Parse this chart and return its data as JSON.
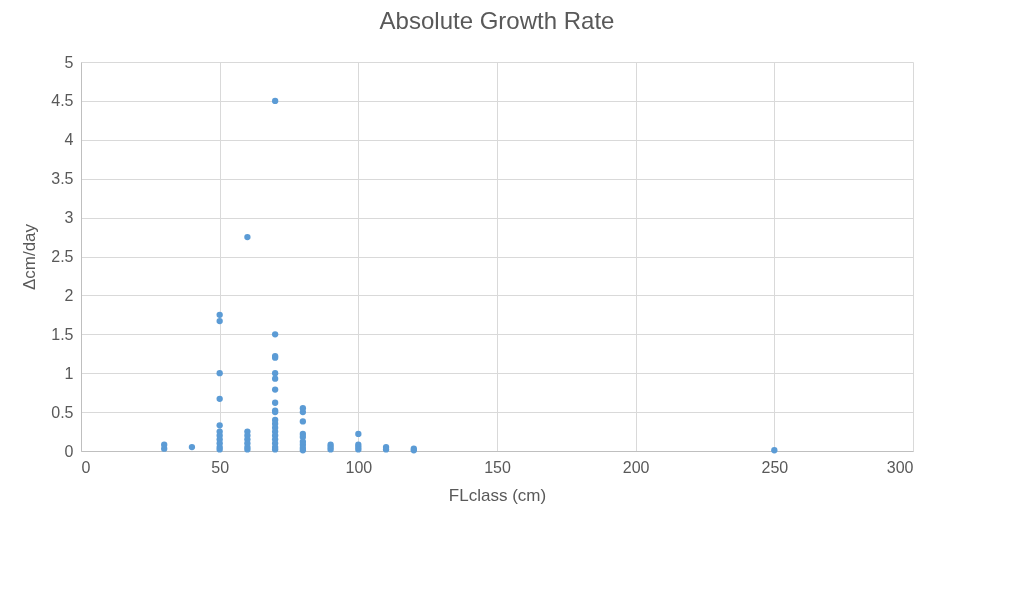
{
  "chart_data": {
    "type": "scatter",
    "title": "Absolute Growth Rate",
    "xlabel": "FLclass (cm)",
    "ylabel": "Δcm/day",
    "x": [
      30,
      30,
      40,
      50,
      50,
      50,
      50,
      50,
      50,
      50,
      50,
      50,
      50,
      50,
      60,
      60,
      60,
      60,
      60,
      60,
      60,
      70,
      70,
      70,
      70,
      70,
      70,
      70,
      70,
      70,
      70,
      70,
      70,
      70,
      70,
      70,
      70,
      70,
      70,
      70,
      80,
      80,
      80,
      80,
      80,
      80,
      80,
      80,
      80,
      90,
      90,
      90,
      100,
      100,
      100,
      100,
      110,
      110,
      120,
      120,
      250
    ],
    "series": [
      {
        "color": "#5b9bd5",
        "values": [
          0.08,
          0.03,
          0.05,
          1.75,
          1.67,
          1.0,
          0.67,
          0.33,
          0.25,
          0.2,
          0.15,
          0.1,
          0.05,
          0.02,
          2.75,
          0.25,
          0.2,
          0.15,
          0.1,
          0.05,
          0.02,
          4.5,
          1.5,
          1.22,
          1.2,
          1.0,
          0.93,
          0.79,
          0.62,
          0.52,
          0.5,
          0.4,
          0.35,
          0.3,
          0.25,
          0.2,
          0.15,
          0.1,
          0.05,
          0.02,
          0.55,
          0.5,
          0.38,
          0.22,
          0.18,
          0.12,
          0.08,
          0.04,
          0.01,
          0.08,
          0.05,
          0.02,
          0.22,
          0.08,
          0.05,
          0.02,
          0.05,
          0.02,
          0.03,
          0.01,
          0.01
        ]
      }
    ],
    "xlim": [
      0,
      300
    ],
    "xticks": [
      0,
      50,
      100,
      150,
      200,
      250,
      300
    ],
    "ylim": [
      0,
      5
    ],
    "yticks": [
      0,
      0.5,
      1,
      1.5,
      2,
      2.5,
      3,
      3.5,
      4,
      4.5,
      5
    ],
    "grid": true
  }
}
